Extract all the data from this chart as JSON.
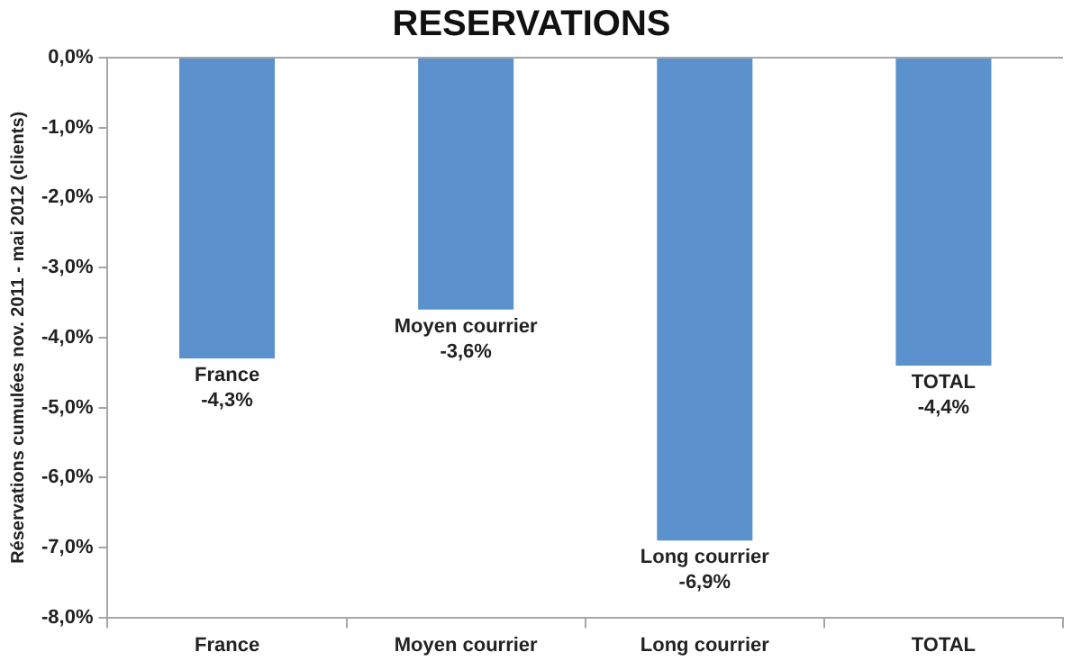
{
  "chart_data": {
    "type": "bar",
    "title": "RESERVATIONS",
    "ylabel": "Réservations cumulées nov. 2011 - mai 2012 (clients)",
    "categories": [
      "France",
      "Moyen courrier",
      "Long courrier",
      "TOTAL"
    ],
    "values": [
      -4.3,
      -3.6,
      -6.9,
      -4.4
    ],
    "value_labels": [
      "-4,3%",
      "-3,6%",
      "-6,9%",
      "-4,4%"
    ],
    "color": "#5b92cd",
    "ylim": [
      -8,
      0
    ],
    "yticks": [
      {
        "value": 0,
        "label": "0,0%"
      },
      {
        "value": -1,
        "label": "-1,0%"
      },
      {
        "value": -2,
        "label": "-2,0%"
      },
      {
        "value": -3,
        "label": "-3,0%"
      },
      {
        "value": -4,
        "label": "-4,0%"
      },
      {
        "value": -5,
        "label": "-5,0%"
      },
      {
        "value": -6,
        "label": "-6,0%"
      },
      {
        "value": -7,
        "label": "-7,0%"
      },
      {
        "value": -8,
        "label": "-8,0%"
      }
    ],
    "grid": false,
    "legend": false
  }
}
